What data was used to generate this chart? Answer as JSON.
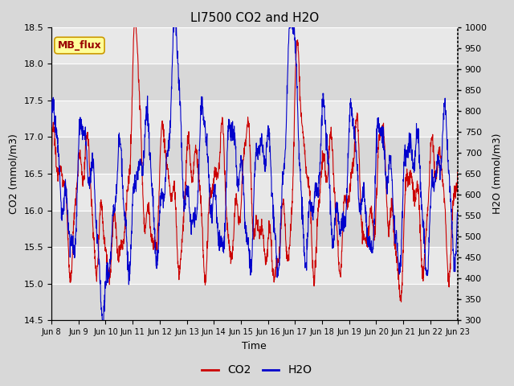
{
  "title": "LI7500 CO2 and H2O",
  "xlabel": "Time",
  "ylabel_left": "CO2 (mmol/m3)",
  "ylabel_right": "H2O (mmol/m3)",
  "ylim_left": [
    14.5,
    18.5
  ],
  "ylim_right": [
    300,
    1000
  ],
  "xtick_labels": [
    "Jun 8",
    "Jun 9",
    "Jun 10",
    "Jun 11",
    "Jun 12",
    "Jun 13",
    "Jun 14",
    "Jun 15",
    "Jun 16",
    "Jun 17",
    "Jun 18",
    "Jun 19",
    "Jun 20",
    "Jun 21",
    "Jun 22",
    "Jun 23"
  ],
  "bg_color": "#d8d8d8",
  "plot_bg_color_light": "#e8e8e8",
  "plot_bg_color_dark": "#d0d0d0",
  "annotation_text": "MB_flux",
  "annotation_bg": "#ffff99",
  "annotation_border": "#cc9900",
  "annotation_text_color": "#990000",
  "co2_color": "#cc0000",
  "h2o_color": "#0000cc",
  "line_width": 0.8,
  "n_points": 2000,
  "right_yticks": [
    300,
    350,
    400,
    450,
    500,
    550,
    600,
    650,
    700,
    750,
    800,
    850,
    900,
    950,
    1000
  ],
  "left_yticks": [
    14.5,
    15.0,
    15.5,
    16.0,
    16.5,
    17.0,
    17.5,
    18.0,
    18.5
  ]
}
